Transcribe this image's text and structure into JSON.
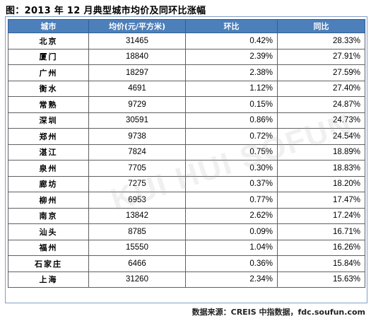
{
  "title": "图：2013 年 12 月典型城市均价及同环比涨幅",
  "table": {
    "headers": {
      "city": "城市",
      "price": "均价(元/平方米)",
      "mom": "环比",
      "yoy": "同比"
    },
    "rows": [
      {
        "city": "北京",
        "price": "31465",
        "mom": "0.42%",
        "yoy": "28.33%"
      },
      {
        "city": "厦门",
        "price": "18840",
        "mom": "2.39%",
        "yoy": "27.91%"
      },
      {
        "city": "广州",
        "price": "18297",
        "mom": "2.38%",
        "yoy": "27.59%"
      },
      {
        "city": "衡水",
        "price": "4691",
        "mom": "1.12%",
        "yoy": "27.40%"
      },
      {
        "city": "常熟",
        "price": "9729",
        "mom": "0.15%",
        "yoy": "24.87%"
      },
      {
        "city": "深圳",
        "price": "30591",
        "mom": "0.86%",
        "yoy": "24.73%"
      },
      {
        "city": "郑州",
        "price": "9738",
        "mom": "0.72%",
        "yoy": "24.54%"
      },
      {
        "city": "湛江",
        "price": "7824",
        "mom": "0.75%",
        "yoy": "18.89%"
      },
      {
        "city": "泉州",
        "price": "7705",
        "mom": "0.30%",
        "yoy": "18.83%"
      },
      {
        "city": "廊坊",
        "price": "7275",
        "mom": "0.37%",
        "yoy": "18.20%"
      },
      {
        "city": "柳州",
        "price": "6953",
        "mom": "0.77%",
        "yoy": "17.47%"
      },
      {
        "city": "南京",
        "price": "13842",
        "mom": "2.62%",
        "yoy": "17.24%"
      },
      {
        "city": "汕头",
        "price": "8785",
        "mom": "0.09%",
        "yoy": "16.71%"
      },
      {
        "city": "福州",
        "price": "15550",
        "mom": "1.04%",
        "yoy": "16.26%"
      },
      {
        "city": "石家庄",
        "price": "6466",
        "mom": "0.36%",
        "yoy": "15.84%"
      },
      {
        "city": "上海",
        "price": "31260",
        "mom": "2.34%",
        "yoy": "15.63%"
      }
    ]
  },
  "watermark": "KUI HUI SOFUN",
  "source": "数据来源：CREIS 中指数据，fdc.soufun.com"
}
